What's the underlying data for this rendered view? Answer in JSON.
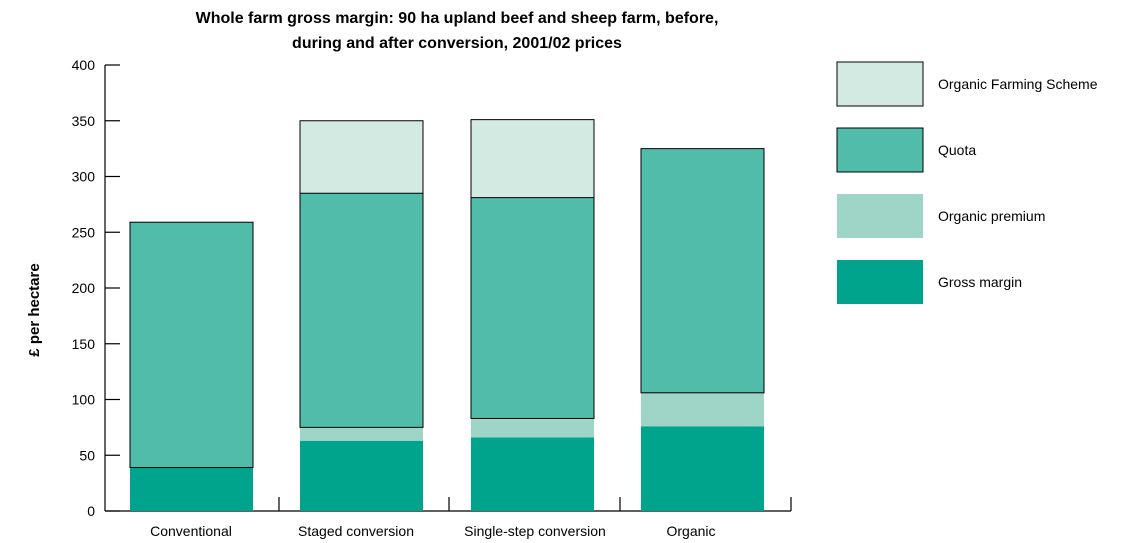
{
  "colors": {
    "gross_margin": "#00a38c",
    "organic_premium": "#9fd5c7",
    "quota": "#52bcaa",
    "organic_farming_scheme": "#d3eae3",
    "outline": "#000000"
  },
  "chart_data": {
    "type": "bar",
    "stacked": true,
    "title_lines": [
      "Whole farm gross margin: 90 ha upland beef and sheep farm, before,",
      "during and after conversion, 2001/02 prices"
    ],
    "xlabel": "",
    "ylabel": "£ per hectare",
    "ylim": [
      0,
      400
    ],
    "yticks": [
      "0",
      "50",
      "100",
      "150",
      "200",
      "250",
      "300",
      "350",
      "400"
    ],
    "categories": [
      "Conventional",
      "Staged conversion",
      "Single-step conversion",
      "Organic"
    ],
    "series": [
      {
        "name": "Gross margin",
        "color_key": "gross_margin",
        "values": [
          39,
          63,
          66,
          76
        ]
      },
      {
        "name": "Organic premium",
        "color_key": "organic_premium",
        "values": [
          0,
          12,
          17,
          30
        ]
      },
      {
        "name": "Quota",
        "color_key": "quota",
        "values": [
          220,
          210,
          198,
          219
        ]
      },
      {
        "name": "Organic Farming Scheme",
        "color_key": "organic_farming_scheme",
        "values": [
          0,
          65,
          70,
          0
        ]
      }
    ],
    "legend": {
      "placement": "right",
      "order": [
        "Organic Farming Scheme",
        "Quota",
        "Organic premium",
        "Gross margin"
      ]
    },
    "grid": false
  }
}
